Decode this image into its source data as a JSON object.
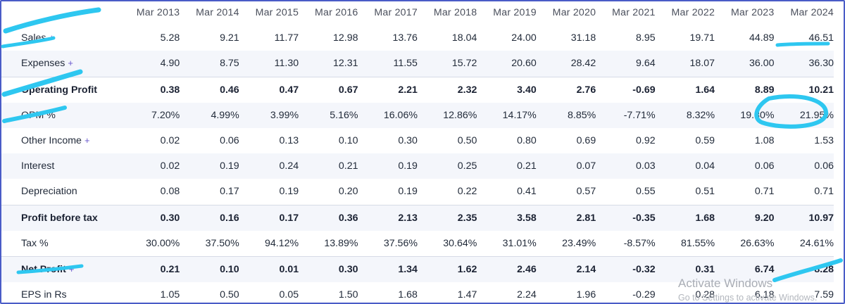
{
  "years": [
    "Mar 2013",
    "Mar 2014",
    "Mar 2015",
    "Mar 2016",
    "Mar 2017",
    "Mar 2018",
    "Mar 2019",
    "Mar 2020",
    "Mar 2021",
    "Mar 2022",
    "Mar 2023",
    "Mar 2024"
  ],
  "rows": [
    {
      "label": "Sales",
      "plus": "+",
      "bold": false,
      "values": [
        "5.28",
        "9.21",
        "11.77",
        "12.98",
        "13.76",
        "18.04",
        "24.00",
        "31.18",
        "8.95",
        "19.71",
        "44.89",
        "46.51"
      ]
    },
    {
      "label": "Expenses",
      "plus": "+",
      "bold": false,
      "values": [
        "4.90",
        "8.75",
        "11.30",
        "12.31",
        "11.55",
        "15.72",
        "20.60",
        "28.42",
        "9.64",
        "18.07",
        "36.00",
        "36.30"
      ]
    },
    {
      "label": "Operating Profit",
      "plus": "",
      "bold": true,
      "values": [
        "0.38",
        "0.46",
        "0.47",
        "0.67",
        "2.21",
        "2.32",
        "3.40",
        "2.76",
        "-0.69",
        "1.64",
        "8.89",
        "10.21"
      ]
    },
    {
      "label": "OPM %",
      "plus": "",
      "bold": false,
      "values": [
        "7.20%",
        "4.99%",
        "3.99%",
        "5.16%",
        "16.06%",
        "12.86%",
        "14.17%",
        "8.85%",
        "-7.71%",
        "8.32%",
        "19.80%",
        "21.95%"
      ]
    },
    {
      "label": "Other Income",
      "plus": "+",
      "bold": false,
      "values": [
        "0.02",
        "0.06",
        "0.13",
        "0.10",
        "0.30",
        "0.50",
        "0.80",
        "0.69",
        "0.92",
        "0.59",
        "1.08",
        "1.53"
      ]
    },
    {
      "label": "Interest",
      "plus": "",
      "bold": false,
      "values": [
        "0.02",
        "0.19",
        "0.24",
        "0.21",
        "0.19",
        "0.25",
        "0.21",
        "0.07",
        "0.03",
        "0.04",
        "0.06",
        "0.06"
      ]
    },
    {
      "label": "Depreciation",
      "plus": "",
      "bold": false,
      "values": [
        "0.08",
        "0.17",
        "0.19",
        "0.20",
        "0.19",
        "0.22",
        "0.41",
        "0.57",
        "0.55",
        "0.51",
        "0.71",
        "0.71"
      ]
    },
    {
      "label": "Profit before tax",
      "plus": "",
      "bold": true,
      "values": [
        "0.30",
        "0.16",
        "0.17",
        "0.36",
        "2.13",
        "2.35",
        "3.58",
        "2.81",
        "-0.35",
        "1.68",
        "9.20",
        "10.97"
      ]
    },
    {
      "label": "Tax %",
      "plus": "",
      "bold": false,
      "values": [
        "30.00%",
        "37.50%",
        "94.12%",
        "13.89%",
        "37.56%",
        "30.64%",
        "31.01%",
        "23.49%",
        "-8.57%",
        "81.55%",
        "26.63%",
        "24.61%"
      ]
    },
    {
      "label": "Net Profit",
      "plus": "+",
      "bold": true,
      "values": [
        "0.21",
        "0.10",
        "0.01",
        "0.30",
        "1.34",
        "1.62",
        "2.46",
        "2.14",
        "-0.32",
        "0.31",
        "6.74",
        "8.28"
      ]
    },
    {
      "label": "EPS in Rs",
      "plus": "",
      "bold": false,
      "values": [
        "1.05",
        "0.50",
        "0.05",
        "1.50",
        "1.68",
        "1.47",
        "2.24",
        "1.96",
        "-0.29",
        "0.28",
        "6.18",
        "7.59"
      ]
    }
  ],
  "watermark": {
    "title": "Activate Windows",
    "subtitle": "Go to Settings to activate Windows."
  },
  "colors": {
    "highlight": "#2ec7f0",
    "plus": "#6a5acd",
    "alt_row": "#f4f6fb"
  }
}
